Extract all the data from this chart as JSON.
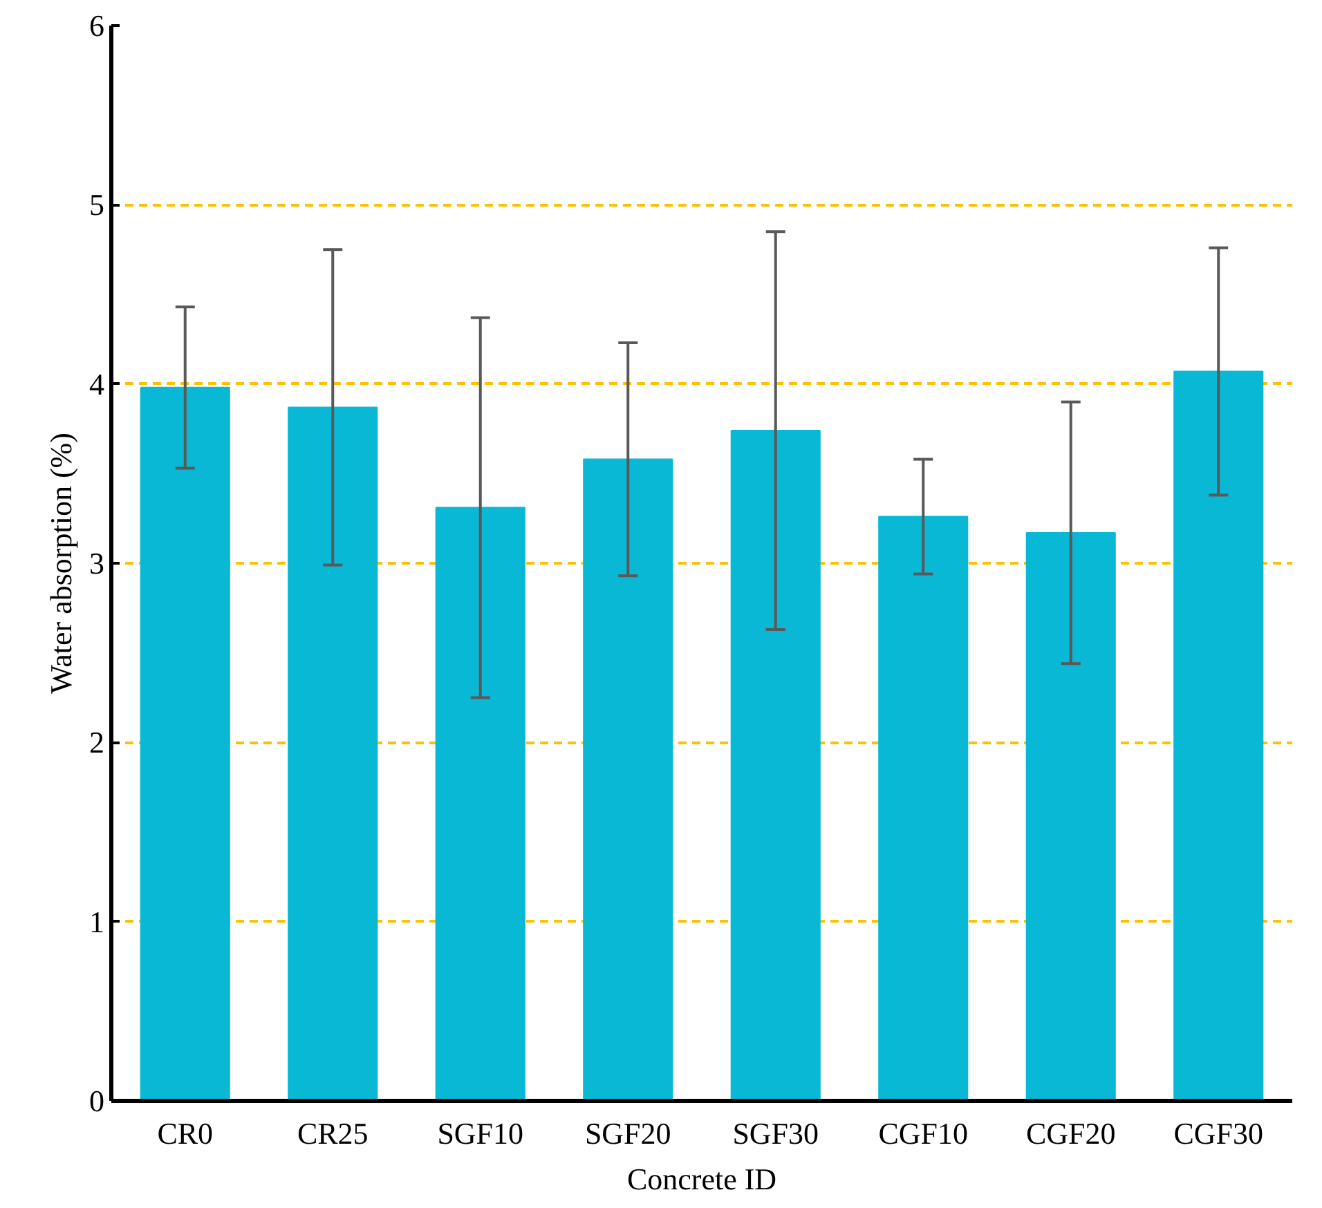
{
  "chart_data": {
    "type": "bar",
    "xlabel": "Concrete ID",
    "ylabel": "Water absorption (%)",
    "categories": [
      "CR0",
      "CR25",
      "SGF10",
      "SGF20",
      "SGF30",
      "CGF10",
      "CGF20",
      "CGF30"
    ],
    "values": [
      3.98,
      3.87,
      3.31,
      3.58,
      3.74,
      3.26,
      3.17,
      4.07
    ],
    "errors": [
      0.45,
      0.88,
      1.06,
      0.65,
      1.11,
      0.32,
      0.73,
      0.69
    ],
    "color": "#08b8d4",
    "ylim": [
      0,
      6
    ],
    "yticks": [
      0,
      1,
      2,
      3,
      4,
      5,
      6
    ],
    "grid": "y"
  }
}
